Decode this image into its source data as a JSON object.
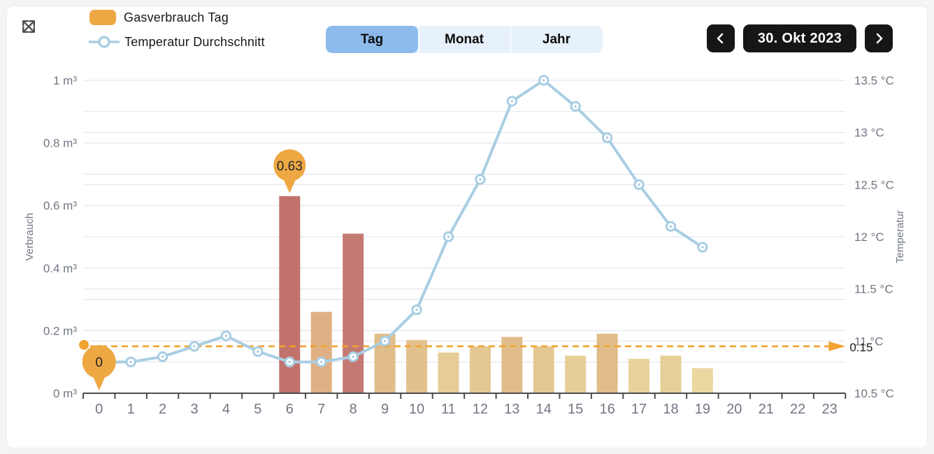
{
  "legend": {
    "items": [
      {
        "label": "Gasverbrauch Tag",
        "symbol": "bar-swatch",
        "color": "#eea843"
      },
      {
        "label": "Temperatur Durchschnitt",
        "symbol": "line-marker",
        "color": "#a9cee3"
      }
    ]
  },
  "tabs": {
    "items": [
      {
        "label": "Tag"
      },
      {
        "label": "Monat"
      },
      {
        "label": "Jahr"
      }
    ],
    "active": "Tag"
  },
  "date_nav": {
    "date": "30. Okt 2023"
  },
  "chart_data": {
    "type": "combo-bar-line",
    "x": [
      0,
      1,
      2,
      3,
      4,
      5,
      6,
      7,
      8,
      9,
      10,
      11,
      12,
      13,
      14,
      15,
      16,
      17,
      18,
      19,
      20,
      21,
      22,
      23
    ],
    "bars": {
      "name": "Gasverbrauch Tag",
      "unit": "m³",
      "axis": "left",
      "values": [
        0,
        0,
        0,
        0,
        0,
        0,
        0.63,
        0.26,
        0.51,
        0.19,
        0.17,
        0.13,
        0.15,
        0.18,
        0.15,
        0.12,
        0.19,
        0.11,
        0.12,
        0.08,
        null,
        null,
        null,
        null
      ],
      "colors": {
        "6": "#c1726c",
        "7": "#dfb084",
        "8": "#c47a72",
        "9": "#e1bd8b",
        "10": "#e2c18e",
        "11": "#e6cc96",
        "12": "#e4c892",
        "13": "#e1bd8b",
        "14": "#e4c892",
        "15": "#e6ce98",
        "16": "#e0bc8a",
        "17": "#e8d19b",
        "18": "#e7cf99",
        "19": "#ebd8a1"
      }
    },
    "line": {
      "name": "Temperatur Durchschnitt",
      "unit": "°C",
      "axis": "right",
      "color": "#a9cee3",
      "values": [
        10.8,
        10.8,
        10.85,
        10.95,
        11.05,
        10.9,
        10.8,
        10.8,
        10.85,
        11.0,
        11.3,
        12.0,
        12.55,
        13.3,
        13.5,
        13.25,
        12.95,
        12.5,
        12.1,
        11.9,
        null,
        null,
        null,
        null
      ]
    },
    "left_axis": {
      "title": "Verbrauch",
      "min": 0,
      "max": 1,
      "tick_values": [
        0,
        0.2,
        0.4,
        0.6,
        0.8,
        1
      ],
      "tick_labels": [
        "0 m³",
        "0.2 m³",
        "0.4 m³",
        "0.6 m³",
        "0.8 m³",
        "1 m³"
      ],
      "grid_step": 0.1
    },
    "right_axis": {
      "title": "Temperatur",
      "min": 10.5,
      "max": 13.5,
      "tick_values": [
        10.5,
        11,
        11.5,
        12,
        12.5,
        13,
        13.5
      ],
      "tick_labels": [
        "10.5 °C",
        "11 °C",
        "11.5 °C",
        "12 °C",
        "12.5 °C",
        "13 °C",
        "13.5 °C"
      ],
      "grid_step": 0.5
    },
    "threshold": {
      "value": 0.15,
      "label": "0.15",
      "color": "#f2a230"
    },
    "value_markers": [
      {
        "hour": 0,
        "label": "0",
        "value": 0,
        "kind": "min"
      },
      {
        "hour": 6,
        "label": "0.63",
        "value": 0.63,
        "kind": "max"
      }
    ],
    "style": {
      "grid_color": "#e2e6f0",
      "axis_color": "#4c4c4c",
      "tick_text_color": "#707683",
      "marker_fill": "#eea843"
    }
  }
}
